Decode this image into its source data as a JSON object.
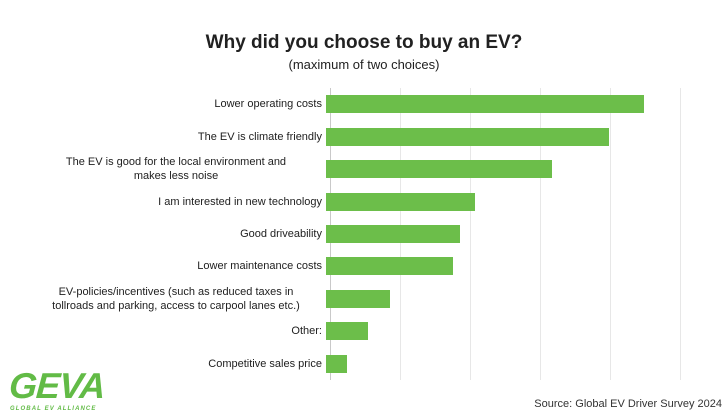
{
  "page": {
    "background": "#ffffff"
  },
  "header": {
    "title": "Why did you choose to buy an EV?",
    "subtitle": "(maximum of two choices)"
  },
  "footer": {
    "source": "Source: Global EV Driver Survey 2024"
  },
  "logo": {
    "name": "GEVA",
    "tagline": "GLOBAL EV ALLIANCE",
    "color": "#62bb46"
  },
  "chart_data": {
    "type": "bar",
    "orientation": "horizontal",
    "title": "Why did you choose to buy an EV?",
    "subtitle": "(maximum of two choices)",
    "categories": [
      "Lower operating costs",
      "The EV is climate friendly",
      "The EV is good for the local environment and\nmakes less noise",
      "I am interested in new technology",
      "Good driveability",
      "Lower maintenance costs",
      "EV-policies/incentives (such as reduced taxes in\ntollroads and parking, access to carpool lanes etc.)",
      "Other:",
      "Competitive sales price"
    ],
    "values": [
      45,
      40,
      32,
      21,
      19,
      18,
      9,
      6,
      3
    ],
    "unit": "percent, estimated from unlabeled gridlines",
    "xlim": [
      0,
      55
    ],
    "gridline_values": [
      0,
      10,
      20,
      30,
      40,
      50
    ],
    "grid": "vertical gridlines only, no tick labels",
    "legend": "none",
    "bar_color": "#6cbe4a",
    "gridline_color": "#e7e7e7",
    "axis_line_color": "#c9c9c9"
  }
}
